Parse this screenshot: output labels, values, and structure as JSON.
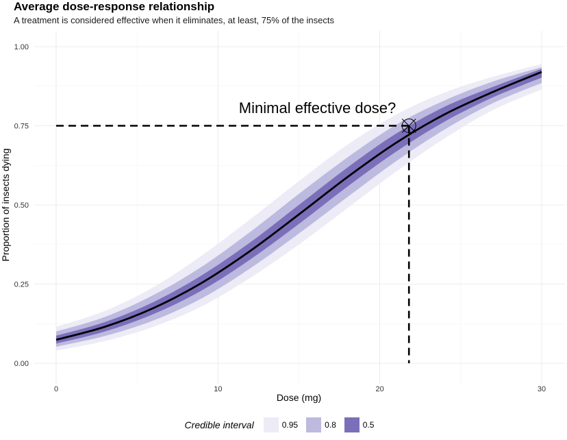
{
  "chart_data": {
    "type": "line",
    "title": "Average dose-response relationship",
    "subtitle": "A treatment is considered effective when it eliminates, at least, 75% of the insects",
    "xlabel": "Dose (mg)",
    "ylabel": "Proportion of insects dying",
    "xlim": [
      0,
      30
    ],
    "ylim": [
      0,
      1
    ],
    "x_ticks": [
      0,
      10,
      20,
      30
    ],
    "x_tick_labels": [
      "0",
      "10",
      "20",
      "30"
    ],
    "y_ticks": [
      0,
      0.25,
      0.5,
      0.75,
      1
    ],
    "y_tick_labels": [
      "0.00",
      "0.25",
      "0.50",
      "0.75",
      "1.00"
    ],
    "grid": true,
    "legend_position": "bottom",
    "curve": {
      "x": [
        0,
        3,
        6,
        9,
        12,
        15,
        18,
        21,
        24,
        27,
        30
      ],
      "y": [
        0.074,
        0.115,
        0.174,
        0.254,
        0.355,
        0.47,
        0.588,
        0.696,
        0.786,
        0.857,
        0.92
      ]
    },
    "bands": [
      {
        "name": "0.95",
        "color": "#ecebf6",
        "lower": [
          0.04,
          0.07,
          0.115,
          0.18,
          0.27,
          0.375,
          0.49,
          0.605,
          0.71,
          0.8,
          0.865
        ],
        "upper": [
          0.115,
          0.165,
          0.24,
          0.34,
          0.455,
          0.575,
          0.69,
          0.785,
          0.855,
          0.905,
          0.945
        ]
      },
      {
        "name": "0.8",
        "color": "#bcbadf",
        "lower": [
          0.052,
          0.086,
          0.135,
          0.205,
          0.3,
          0.41,
          0.525,
          0.638,
          0.738,
          0.822,
          0.885
        ],
        "upper": [
          0.1,
          0.146,
          0.215,
          0.305,
          0.415,
          0.535,
          0.65,
          0.753,
          0.83,
          0.89,
          0.935
        ]
      },
      {
        "name": "0.5",
        "color": "#7b6fba",
        "lower": [
          0.062,
          0.1,
          0.155,
          0.23,
          0.328,
          0.44,
          0.558,
          0.668,
          0.763,
          0.84,
          0.902
        ],
        "upper": [
          0.087,
          0.13,
          0.193,
          0.278,
          0.382,
          0.5,
          0.618,
          0.725,
          0.81,
          0.873,
          0.93
        ]
      }
    ],
    "reference": {
      "x": 21.8,
      "y": 0.75
    },
    "annotation": {
      "text": "Minimal effective dose?",
      "x": 21,
      "y": 0.79
    }
  },
  "legend": {
    "title": "Credible interval",
    "items": [
      {
        "label": "0.95",
        "color": "#ecebf6"
      },
      {
        "label": "0.8",
        "color": "#bcbadf"
      },
      {
        "label": "0.5",
        "color": "#7b6fba"
      }
    ]
  }
}
